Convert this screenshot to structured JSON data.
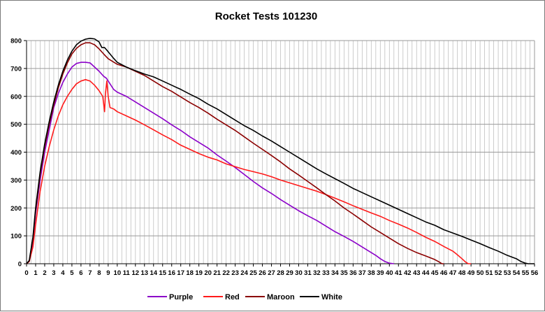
{
  "chart_data": {
    "type": "line",
    "title": "Rocket Tests 101230",
    "xlabel": "",
    "ylabel": "",
    "xlim": [
      0,
      56
    ],
    "ylim": [
      0,
      800
    ],
    "x_ticks": [
      0,
      1,
      2,
      3,
      4,
      5,
      6,
      7,
      8,
      9,
      10,
      11,
      12,
      13,
      14,
      15,
      16,
      17,
      18,
      19,
      20,
      21,
      22,
      23,
      24,
      25,
      26,
      27,
      28,
      29,
      30,
      31,
      32,
      33,
      34,
      35,
      36,
      37,
      38,
      39,
      40,
      41,
      42,
      43,
      44,
      45,
      46,
      47,
      48,
      49,
      50,
      51,
      52,
      53,
      54,
      55,
      56
    ],
    "y_ticks": [
      0,
      100,
      200,
      300,
      400,
      500,
      600,
      700,
      800
    ],
    "x_grid_step": 0.5,
    "grid": true,
    "legend_position": "bottom",
    "series": [
      {
        "name": "Purple",
        "color": "#8b00c9",
        "points": [
          [
            0,
            0
          ],
          [
            0.3,
            10
          ],
          [
            0.7,
            80
          ],
          [
            1,
            180
          ],
          [
            1.5,
            300
          ],
          [
            2,
            400
          ],
          [
            2.5,
            480
          ],
          [
            3,
            560
          ],
          [
            3.5,
            610
          ],
          [
            4,
            650
          ],
          [
            4.5,
            680
          ],
          [
            5,
            705
          ],
          [
            5.5,
            718
          ],
          [
            6,
            722
          ],
          [
            6.5,
            722
          ],
          [
            7,
            720
          ],
          [
            7.5,
            705
          ],
          [
            8,
            690
          ],
          [
            8.5,
            672
          ],
          [
            8.8,
            665
          ],
          [
            9,
            655
          ],
          [
            9.3,
            640
          ],
          [
            9.6,
            625
          ],
          [
            10,
            615
          ],
          [
            11,
            600
          ],
          [
            12,
            580
          ],
          [
            13,
            560
          ],
          [
            14,
            540
          ],
          [
            15,
            520
          ],
          [
            16,
            498
          ],
          [
            17,
            478
          ],
          [
            18,
            455
          ],
          [
            19,
            435
          ],
          [
            20,
            415
          ],
          [
            21,
            390
          ],
          [
            22,
            368
          ],
          [
            23,
            345
          ],
          [
            24,
            320
          ],
          [
            25,
            295
          ],
          [
            26,
            272
          ],
          [
            27,
            252
          ],
          [
            28,
            230
          ],
          [
            29,
            210
          ],
          [
            30,
            190
          ],
          [
            31,
            172
          ],
          [
            32,
            155
          ],
          [
            33,
            135
          ],
          [
            34,
            115
          ],
          [
            35,
            98
          ],
          [
            36,
            80
          ],
          [
            37,
            60
          ],
          [
            38,
            40
          ],
          [
            38.5,
            30
          ],
          [
            39,
            18
          ],
          [
            39.5,
            8
          ],
          [
            40,
            2
          ],
          [
            40.5,
            0
          ]
        ]
      },
      {
        "name": "Red",
        "color": "#ff1a1a",
        "points": [
          [
            0,
            0
          ],
          [
            0.3,
            8
          ],
          [
            0.7,
            60
          ],
          [
            1,
            140
          ],
          [
            1.5,
            260
          ],
          [
            2,
            350
          ],
          [
            2.5,
            420
          ],
          [
            3,
            480
          ],
          [
            3.5,
            530
          ],
          [
            4,
            570
          ],
          [
            4.5,
            600
          ],
          [
            5,
            625
          ],
          [
            5.5,
            645
          ],
          [
            6,
            655
          ],
          [
            6.5,
            660
          ],
          [
            7,
            655
          ],
          [
            7.5,
            640
          ],
          [
            8,
            620
          ],
          [
            8.4,
            600
          ],
          [
            8.6,
            545
          ],
          [
            8.7,
            610
          ],
          [
            8.85,
            655
          ],
          [
            9,
            600
          ],
          [
            9.2,
            560
          ],
          [
            9.6,
            555
          ],
          [
            10,
            545
          ],
          [
            11,
            530
          ],
          [
            12,
            515
          ],
          [
            13,
            498
          ],
          [
            14,
            480
          ],
          [
            15,
            462
          ],
          [
            16,
            445
          ],
          [
            17,
            425
          ],
          [
            18,
            410
          ],
          [
            19,
            395
          ],
          [
            20,
            382
          ],
          [
            21,
            372
          ],
          [
            22,
            358
          ],
          [
            23,
            348
          ],
          [
            24,
            338
          ],
          [
            25,
            330
          ],
          [
            26,
            322
          ],
          [
            27,
            312
          ],
          [
            28,
            300
          ],
          [
            29,
            290
          ],
          [
            30,
            280
          ],
          [
            31,
            270
          ],
          [
            32,
            260
          ],
          [
            33,
            248
          ],
          [
            34,
            235
          ],
          [
            35,
            222
          ],
          [
            36,
            208
          ],
          [
            37,
            195
          ],
          [
            38,
            182
          ],
          [
            39,
            170
          ],
          [
            40,
            155
          ],
          [
            41,
            142
          ],
          [
            42,
            128
          ],
          [
            43,
            112
          ],
          [
            44,
            95
          ],
          [
            45,
            80
          ],
          [
            46,
            62
          ],
          [
            47,
            45
          ],
          [
            47.5,
            32
          ],
          [
            48,
            18
          ],
          [
            48.4,
            6
          ],
          [
            48.7,
            0
          ],
          [
            49,
            0
          ]
        ]
      },
      {
        "name": "Maroon",
        "color": "#8b0000",
        "points": [
          [
            0,
            0
          ],
          [
            0.3,
            10
          ],
          [
            0.7,
            90
          ],
          [
            1,
            190
          ],
          [
            1.5,
            320
          ],
          [
            2,
            420
          ],
          [
            2.5,
            500
          ],
          [
            3,
            570
          ],
          [
            3.5,
            630
          ],
          [
            4,
            680
          ],
          [
            4.5,
            720
          ],
          [
            5,
            752
          ],
          [
            5.5,
            772
          ],
          [
            6,
            785
          ],
          [
            6.5,
            792
          ],
          [
            7,
            792
          ],
          [
            7.5,
            785
          ],
          [
            8,
            770
          ],
          [
            8.5,
            752
          ],
          [
            9,
            735
          ],
          [
            9.5,
            725
          ],
          [
            10,
            715
          ],
          [
            11,
            705
          ],
          [
            12,
            690
          ],
          [
            13,
            675
          ],
          [
            14,
            655
          ],
          [
            15,
            635
          ],
          [
            16,
            618
          ],
          [
            17,
            598
          ],
          [
            18,
            578
          ],
          [
            19,
            560
          ],
          [
            20,
            540
          ],
          [
            21,
            518
          ],
          [
            22,
            498
          ],
          [
            23,
            478
          ],
          [
            24,
            455
          ],
          [
            25,
            432
          ],
          [
            26,
            410
          ],
          [
            27,
            388
          ],
          [
            28,
            365
          ],
          [
            29,
            340
          ],
          [
            30,
            318
          ],
          [
            31,
            295
          ],
          [
            32,
            272
          ],
          [
            33,
            248
          ],
          [
            34,
            225
          ],
          [
            35,
            200
          ],
          [
            36,
            178
          ],
          [
            37,
            155
          ],
          [
            38,
            132
          ],
          [
            39,
            112
          ],
          [
            40,
            92
          ],
          [
            41,
            72
          ],
          [
            42,
            55
          ],
          [
            43,
            40
          ],
          [
            44,
            28
          ],
          [
            45,
            15
          ],
          [
            45.5,
            6
          ],
          [
            45.8,
            0
          ],
          [
            46,
            0
          ]
        ]
      },
      {
        "name": "White",
        "color": "#000000",
        "points": [
          [
            0,
            0
          ],
          [
            0.3,
            12
          ],
          [
            0.7,
            95
          ],
          [
            1,
            200
          ],
          [
            1.5,
            330
          ],
          [
            2,
            430
          ],
          [
            2.5,
            510
          ],
          [
            3,
            580
          ],
          [
            3.5,
            640
          ],
          [
            4,
            690
          ],
          [
            4.5,
            730
          ],
          [
            5,
            762
          ],
          [
            5.5,
            785
          ],
          [
            6,
            798
          ],
          [
            6.5,
            805
          ],
          [
            7,
            808
          ],
          [
            7.5,
            806
          ],
          [
            8,
            795
          ],
          [
            8.3,
            775
          ],
          [
            8.6,
            775
          ],
          [
            9,
            760
          ],
          [
            9.5,
            740
          ],
          [
            10,
            722
          ],
          [
            11,
            705
          ],
          [
            12,
            692
          ],
          [
            13,
            680
          ],
          [
            14,
            670
          ],
          [
            15,
            655
          ],
          [
            16,
            640
          ],
          [
            17,
            625
          ],
          [
            18,
            608
          ],
          [
            19,
            592
          ],
          [
            20,
            572
          ],
          [
            21,
            555
          ],
          [
            22,
            535
          ],
          [
            23,
            515
          ],
          [
            24,
            495
          ],
          [
            25,
            478
          ],
          [
            26,
            458
          ],
          [
            27,
            440
          ],
          [
            28,
            420
          ],
          [
            29,
            400
          ],
          [
            30,
            380
          ],
          [
            31,
            360
          ],
          [
            32,
            340
          ],
          [
            33,
            322
          ],
          [
            34,
            305
          ],
          [
            35,
            288
          ],
          [
            36,
            270
          ],
          [
            37,
            255
          ],
          [
            38,
            240
          ],
          [
            39,
            225
          ],
          [
            40,
            210
          ],
          [
            41,
            195
          ],
          [
            42,
            180
          ],
          [
            43,
            165
          ],
          [
            44,
            150
          ],
          [
            45,
            138
          ],
          [
            46,
            122
          ],
          [
            47,
            110
          ],
          [
            48,
            98
          ],
          [
            49,
            85
          ],
          [
            50,
            72
          ],
          [
            51,
            58
          ],
          [
            52,
            45
          ],
          [
            53,
            30
          ],
          [
            54,
            18
          ],
          [
            54.5,
            8
          ],
          [
            55,
            2
          ],
          [
            55.3,
            0
          ],
          [
            56,
            0
          ]
        ]
      }
    ]
  }
}
